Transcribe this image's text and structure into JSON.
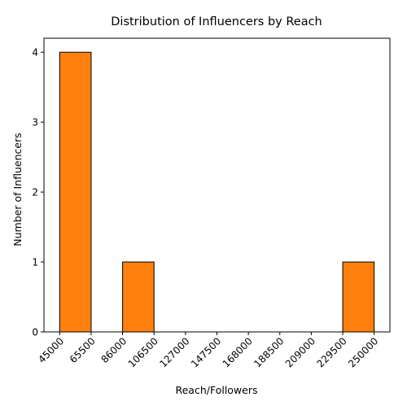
{
  "chart_data": {
    "type": "bar",
    "subtype": "histogram",
    "title": "Distribution of Influencers by Reach",
    "xlabel": "Reach/Followers",
    "ylabel": "Number of Influencers",
    "bin_edges": [
      45000,
      65500,
      86000,
      106500,
      127000,
      147500,
      168000,
      188500,
      209000,
      229500,
      250000
    ],
    "x_tick_labels": [
      "45000",
      "65500",
      "86000",
      "106500",
      "127000",
      "147500",
      "168000",
      "188500",
      "209000",
      "229500",
      "250000"
    ],
    "values": [
      4,
      0,
      1,
      0,
      0,
      0,
      0,
      0,
      0,
      1
    ],
    "y_ticks": [
      0,
      1,
      2,
      3,
      4
    ],
    "ylim": [
      0,
      4.2
    ],
    "grid": false,
    "bar_color": "#ff7f0e",
    "edge_color": "#000000"
  }
}
